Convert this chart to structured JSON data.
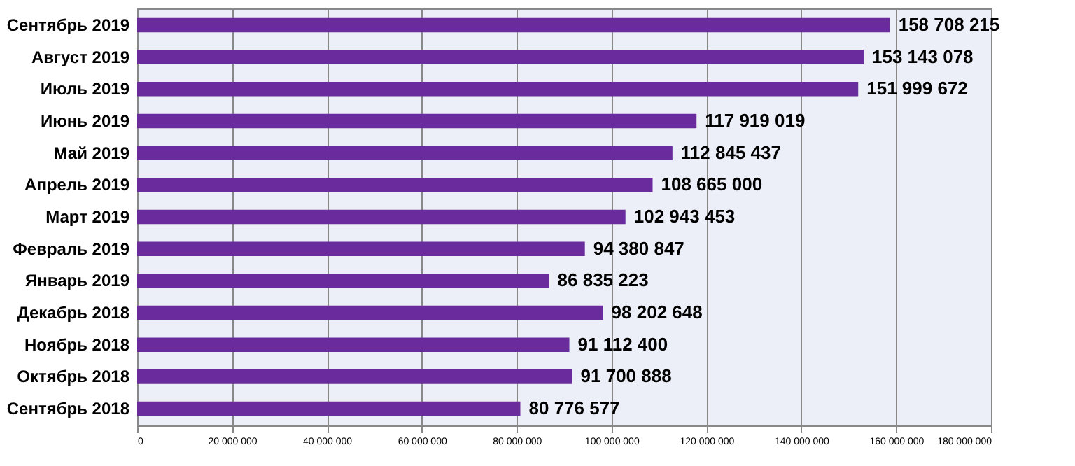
{
  "chart_data": {
    "type": "bar",
    "orientation": "horizontal",
    "categories": [
      "Сентябрь 2019",
      "Август 2019",
      "Июль 2019",
      "Июнь 2019",
      "Май 2019",
      "Апрель 2019",
      "Март 2019",
      "Февраль 2019",
      "Январь 2019",
      "Декабрь 2018",
      "Ноябрь 2018",
      "Октябрь 2018",
      "Сентябрь 2018"
    ],
    "values": [
      158708215,
      153143078,
      151999672,
      117919019,
      112845437,
      108665000,
      102943453,
      94380847,
      86835223,
      98202648,
      91112400,
      91700888,
      80776577
    ],
    "value_labels": [
      "158 708 215",
      "153 143 078",
      "151 999 672",
      "117 919 019",
      "112 845 437",
      "108 665 000",
      "102 943 453",
      "94 380 847",
      "86 835 223",
      "98 202 648",
      "91 112 400",
      "91 700 888",
      "80 776 577"
    ],
    "color": "#6a2c9c",
    "xlim": [
      0,
      180000000
    ],
    "xticks": [
      {
        "value": 0,
        "label": "0"
      },
      {
        "value": 20000000,
        "label": "20 000 000"
      },
      {
        "value": 40000000,
        "label": "40 000 000"
      },
      {
        "value": 60000000,
        "label": "60 000 000"
      },
      {
        "value": 80000000,
        "label": "80 000 000"
      },
      {
        "value": 100000000,
        "label": "100 000 000"
      },
      {
        "value": 120000000,
        "label": "120 000 000"
      },
      {
        "value": 140000000,
        "label": "140 000 000"
      },
      {
        "value": 160000000,
        "label": "160 000 000"
      },
      {
        "value": 180000000,
        "label": "180 000 000"
      }
    ],
    "grid": "x"
  }
}
